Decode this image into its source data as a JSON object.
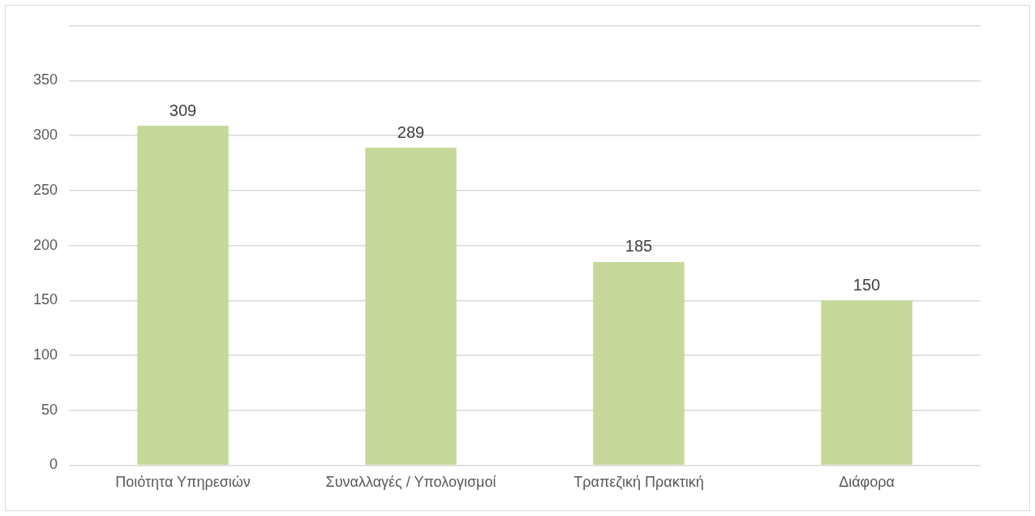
{
  "chart_data": {
    "type": "bar",
    "categories": [
      "Ποιότητα Υπηρεσιών",
      "Συναλλαγές / Υπολογισμοί",
      "Τραπεζική Πρακτική",
      "Διάφορα"
    ],
    "values": [
      309,
      289,
      185,
      150
    ],
    "color": "#c5d89a",
    "ylim": [
      0,
      400
    ],
    "yticks": [
      0,
      50,
      100,
      150,
      200,
      250,
      300,
      350,
      {
        "value": 400,
        "label": null
      }
    ],
    "grid": "y",
    "legend": false,
    "data_labels": true
  }
}
